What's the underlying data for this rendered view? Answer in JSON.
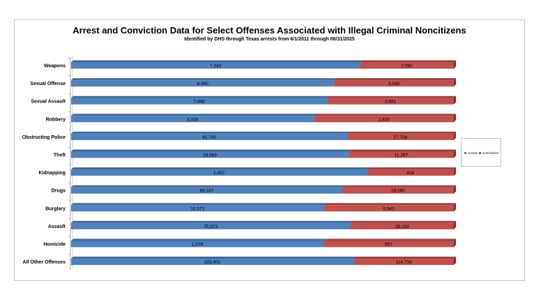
{
  "chart_data": {
    "type": "bar",
    "stacked": true,
    "normalized_percent": true,
    "orientation": "horizontal",
    "title": "Arrest and Conviction Data for Select Offenses Associated with Illegal Criminal Noncitizens",
    "subtitle": "Identified by DHS through Texas arrests from 6/1/2011 through 08/31/2025",
    "categories": [
      "Weapons",
      "Sexual Offense",
      "Sexual Assault",
      "Robbery",
      "Obstructing Police",
      "Theft",
      "Kidnapping",
      "Drugs",
      "Burglary",
      "Assault",
      "Homicide",
      "All Other Offenses"
    ],
    "series": [
      {
        "name": "Arrests",
        "values": [
          7343,
          8460,
          7446,
          3328,
          45799,
          29669,
          1457,
          68187,
          10371,
          75973,
          1078,
          323901
        ],
        "labels": [
          "7,343",
          "8,460",
          "7,446",
          "3,328",
          "45,799",
          "29,669",
          "1,457",
          "68,187",
          "10,371",
          "75,973",
          "1,078",
          "323,901"
        ],
        "color": "#4f81bd"
      },
      {
        "name": "Convictions",
        "values": [
          2390,
          3848,
          3691,
          1920,
          17758,
          11267,
          428,
          28060,
          5343,
          28159,
          557,
          114716
        ],
        "labels": [
          "2,390",
          "3,848",
          "3,691",
          "1,920",
          "17,758",
          "11,267",
          "428",
          "28,060",
          "5,343",
          "28,159",
          "557",
          "114,716"
        ],
        "color": "#c0504d"
      }
    ],
    "legend_position": "right",
    "grid": false
  }
}
